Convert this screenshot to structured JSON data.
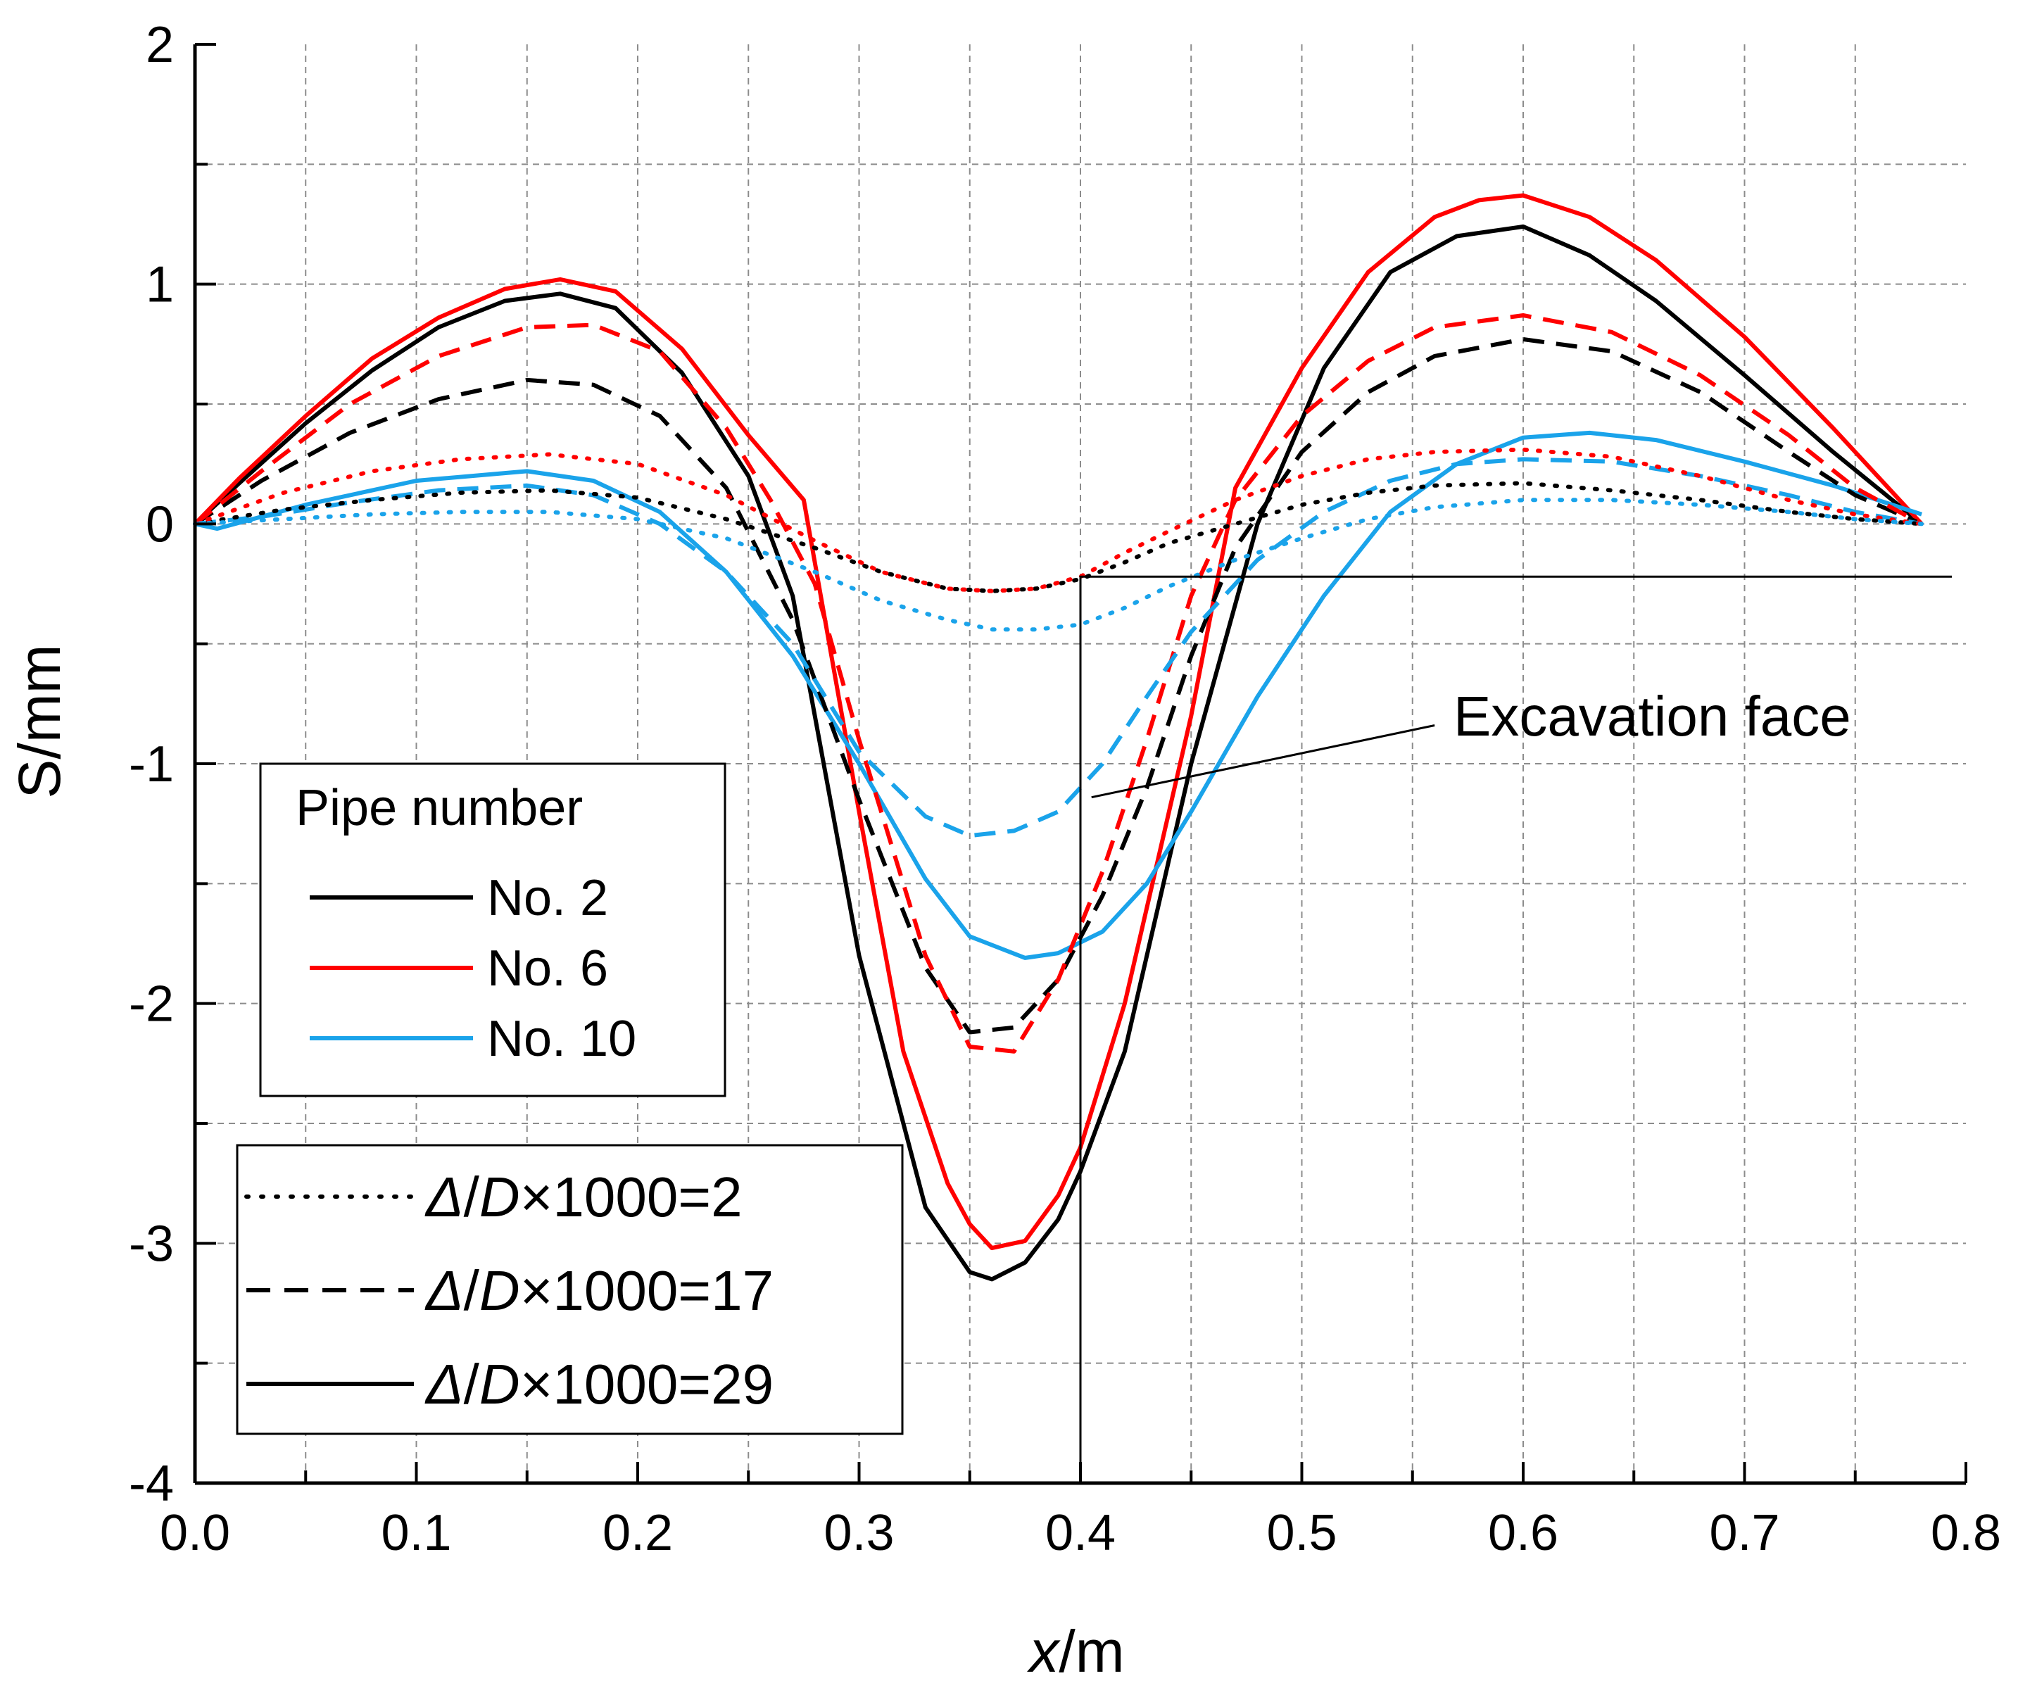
{
  "chart_data": {
    "type": "line",
    "title": "",
    "xlabel_italic": "x",
    "xlabel_unit": "/m",
    "ylabel": "S/mm",
    "xlim": [
      0.0,
      0.8
    ],
    "ylim": [
      -4,
      2
    ],
    "x_ticks": [
      "0.0",
      "0.1",
      "0.2",
      "0.3",
      "0.4",
      "0.5",
      "0.6",
      "0.7",
      "0.8"
    ],
    "y_ticks": [
      "2",
      "1",
      "0",
      "-1",
      "-2",
      "-3",
      "-4"
    ],
    "grid": true,
    "annotation": {
      "text": "Excavation face",
      "excavation_x": 0.4,
      "excavation_y_top": -0.22,
      "pointer_start": [
        0.405,
        -1.14
      ],
      "pointer_end": [
        0.56,
        -0.84
      ]
    },
    "pipe_legend": {
      "title": "Pipe number",
      "items": [
        {
          "label": "No. 2",
          "color": "#000000"
        },
        {
          "label": "No. 6",
          "color": "#ff0000"
        },
        {
          "label": "No. 10",
          "color": "#1aa3ea"
        }
      ]
    },
    "ratio_legend": {
      "items": [
        {
          "prefix": "Δ",
          "slash": "/",
          "d": "D",
          "suffix": "×1000=2",
          "style": "dotted"
        },
        {
          "prefix": "Δ",
          "slash": "/",
          "d": "D",
          "suffix": "×1000=17",
          "style": "dashed"
        },
        {
          "prefix": "Δ",
          "slash": "/",
          "d": "D",
          "suffix": "×1000=29",
          "style": "solid"
        }
      ]
    },
    "series": [
      {
        "name": "No. 2, Δ/D×1000=29",
        "color": "#000000",
        "style": "solid",
        "x": [
          0,
          0.02,
          0.05,
          0.08,
          0.11,
          0.14,
          0.165,
          0.19,
          0.22,
          0.25,
          0.27,
          0.3,
          0.33,
          0.35,
          0.36,
          0.375,
          0.39,
          0.4,
          0.42,
          0.45,
          0.48,
          0.51,
          0.54,
          0.57,
          0.6,
          0.63,
          0.66,
          0.7,
          0.74,
          0.78
        ],
        "y": [
          0,
          0.17,
          0.42,
          0.64,
          0.82,
          0.93,
          0.96,
          0.9,
          0.63,
          0.2,
          -0.3,
          -1.8,
          -2.85,
          -3.12,
          -3.15,
          -3.08,
          -2.9,
          -2.7,
          -2.2,
          -1.0,
          0.0,
          0.65,
          1.05,
          1.2,
          1.24,
          1.12,
          0.93,
          0.62,
          0.3,
          0.0
        ]
      },
      {
        "name": "No. 6, Δ/D×1000=29",
        "color": "#ff0000",
        "style": "solid",
        "x": [
          0,
          0.02,
          0.05,
          0.08,
          0.11,
          0.14,
          0.165,
          0.19,
          0.22,
          0.25,
          0.275,
          0.3,
          0.32,
          0.34,
          0.35,
          0.36,
          0.375,
          0.39,
          0.4,
          0.42,
          0.45,
          0.47,
          0.5,
          0.53,
          0.56,
          0.58,
          0.6,
          0.63,
          0.66,
          0.7,
          0.74,
          0.78
        ],
        "y": [
          0,
          0.19,
          0.45,
          0.69,
          0.86,
          0.98,
          1.02,
          0.97,
          0.73,
          0.37,
          0.1,
          -1.2,
          -2.2,
          -2.75,
          -2.92,
          -3.02,
          -2.99,
          -2.8,
          -2.6,
          -2.0,
          -0.8,
          0.15,
          0.65,
          1.05,
          1.28,
          1.35,
          1.37,
          1.28,
          1.1,
          0.78,
          0.4,
          0.0
        ]
      },
      {
        "name": "No. 10, Δ/D×1000=29",
        "color": "#1aa3ea",
        "style": "solid",
        "x": [
          0,
          0.01,
          0.05,
          0.1,
          0.15,
          0.18,
          0.21,
          0.24,
          0.27,
          0.3,
          0.33,
          0.35,
          0.375,
          0.39,
          0.41,
          0.43,
          0.45,
          0.48,
          0.51,
          0.54,
          0.57,
          0.6,
          0.63,
          0.66,
          0.7,
          0.74,
          0.78
        ],
        "y": [
          0,
          -0.02,
          0.08,
          0.18,
          0.22,
          0.18,
          0.05,
          -0.2,
          -0.55,
          -1.0,
          -1.48,
          -1.72,
          -1.81,
          -1.79,
          -1.7,
          -1.5,
          -1.2,
          -0.72,
          -0.3,
          0.05,
          0.25,
          0.36,
          0.38,
          0.35,
          0.26,
          0.16,
          0.04
        ]
      },
      {
        "name": "No. 2, Δ/D×1000=17",
        "color": "#000000",
        "style": "dashed",
        "x": [
          0,
          0.03,
          0.07,
          0.11,
          0.15,
          0.18,
          0.21,
          0.24,
          0.27,
          0.3,
          0.33,
          0.35,
          0.37,
          0.39,
          0.41,
          0.43,
          0.45,
          0.47,
          0.5,
          0.53,
          0.56,
          0.6,
          0.64,
          0.68,
          0.72,
          0.75,
          0.78
        ],
        "y": [
          0,
          0.18,
          0.38,
          0.52,
          0.6,
          0.58,
          0.45,
          0.15,
          -0.4,
          -1.15,
          -1.85,
          -2.12,
          -2.1,
          -1.9,
          -1.55,
          -1.1,
          -0.55,
          -0.1,
          0.3,
          0.55,
          0.7,
          0.77,
          0.72,
          0.55,
          0.3,
          0.12,
          0.0
        ]
      },
      {
        "name": "No. 6, Δ/D×1000=17",
        "color": "#ff0000",
        "style": "dashed",
        "x": [
          0,
          0.03,
          0.07,
          0.11,
          0.15,
          0.18,
          0.21,
          0.24,
          0.26,
          0.28,
          0.3,
          0.33,
          0.35,
          0.37,
          0.39,
          0.41,
          0.43,
          0.45,
          0.47,
          0.5,
          0.53,
          0.56,
          0.6,
          0.64,
          0.68,
          0.72,
          0.75,
          0.78
        ],
        "y": [
          0,
          0.22,
          0.5,
          0.7,
          0.82,
          0.83,
          0.72,
          0.4,
          0.1,
          -0.25,
          -0.9,
          -1.8,
          -2.18,
          -2.2,
          -1.9,
          -1.45,
          -0.9,
          -0.3,
          0.1,
          0.45,
          0.68,
          0.82,
          0.87,
          0.8,
          0.62,
          0.37,
          0.15,
          0.0
        ]
      },
      {
        "name": "No. 10, Δ/D×1000=17",
        "color": "#1aa3ea",
        "style": "dashed",
        "x": [
          0,
          0.03,
          0.07,
          0.11,
          0.15,
          0.18,
          0.21,
          0.24,
          0.27,
          0.3,
          0.33,
          0.35,
          0.37,
          0.39,
          0.41,
          0.43,
          0.45,
          0.48,
          0.51,
          0.54,
          0.57,
          0.6,
          0.64,
          0.68,
          0.72,
          0.75,
          0.78
        ],
        "y": [
          0,
          0.03,
          0.09,
          0.14,
          0.16,
          0.12,
          0.0,
          -0.2,
          -0.5,
          -0.95,
          -1.22,
          -1.3,
          -1.28,
          -1.2,
          -1.0,
          -0.72,
          -0.45,
          -0.15,
          0.05,
          0.18,
          0.25,
          0.27,
          0.26,
          0.2,
          0.12,
          0.05,
          0.0
        ]
      },
      {
        "name": "No. 2, Δ/D×1000=2",
        "color": "#000000",
        "style": "dotted",
        "x": [
          0,
          0.04,
          0.08,
          0.12,
          0.16,
          0.2,
          0.24,
          0.28,
          0.31,
          0.34,
          0.36,
          0.38,
          0.4,
          0.42,
          0.44,
          0.47,
          0.5,
          0.53,
          0.56,
          0.6,
          0.64,
          0.68,
          0.72,
          0.75,
          0.78
        ],
        "y": [
          0,
          0.06,
          0.1,
          0.13,
          0.14,
          0.11,
          0.02,
          -0.1,
          -0.2,
          -0.27,
          -0.28,
          -0.27,
          -0.23,
          -0.16,
          -0.08,
          0.0,
          0.08,
          0.13,
          0.16,
          0.17,
          0.14,
          0.1,
          0.05,
          0.02,
          0.0
        ]
      },
      {
        "name": "No. 6, Δ/D×1000=2",
        "color": "#ff0000",
        "style": "dotted",
        "x": [
          0,
          0.04,
          0.08,
          0.12,
          0.16,
          0.2,
          0.24,
          0.28,
          0.31,
          0.34,
          0.36,
          0.38,
          0.4,
          0.42,
          0.44,
          0.47,
          0.5,
          0.53,
          0.56,
          0.6,
          0.64,
          0.68,
          0.72,
          0.75,
          0.78
        ],
        "y": [
          0,
          0.13,
          0.22,
          0.27,
          0.29,
          0.25,
          0.12,
          -0.07,
          -0.2,
          -0.27,
          -0.28,
          -0.27,
          -0.22,
          -0.12,
          -0.03,
          0.1,
          0.2,
          0.27,
          0.3,
          0.31,
          0.28,
          0.2,
          0.1,
          0.04,
          0.0
        ]
      },
      {
        "name": "No. 10, Δ/D×1000=2",
        "color": "#1aa3ea",
        "style": "dotted",
        "x": [
          0,
          0.04,
          0.08,
          0.12,
          0.16,
          0.2,
          0.24,
          0.28,
          0.31,
          0.34,
          0.36,
          0.38,
          0.4,
          0.42,
          0.44,
          0.47,
          0.5,
          0.53,
          0.56,
          0.6,
          0.64,
          0.68,
          0.72,
          0.75,
          0.78
        ],
        "y": [
          0,
          0.02,
          0.04,
          0.05,
          0.05,
          0.02,
          -0.06,
          -0.2,
          -0.32,
          -0.4,
          -0.44,
          -0.44,
          -0.42,
          -0.35,
          -0.26,
          -0.15,
          -0.06,
          0.02,
          0.07,
          0.1,
          0.1,
          0.08,
          0.05,
          0.02,
          0.0
        ]
      }
    ]
  }
}
